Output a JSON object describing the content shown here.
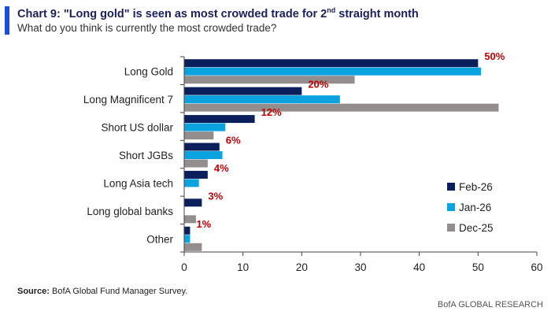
{
  "header": {
    "title_main": "Chart 9: \"Long gold\" is seen as most crowded trade for 2",
    "title_sup": "nd",
    "title_tail": " straight month",
    "subtitle": "What do you think is currently the most crowded trade?"
  },
  "footer": {
    "source_label": "Source:",
    "source_text": " BofA Global Fund Manager Survey.",
    "brand": "BofA GLOBAL RESEARCH"
  },
  "chart_data": {
    "type": "bar",
    "orientation": "horizontal",
    "categories": [
      "Long Gold",
      "Long Magnificent 7",
      "Short US dollar",
      "Short JGBs",
      "Long Asia tech",
      "Long global banks",
      "Other"
    ],
    "series": [
      {
        "name": "Feb-26",
        "color": "#0b1f5c",
        "values": [
          50,
          20,
          12,
          6,
          4,
          3,
          1
        ]
      },
      {
        "name": "Jan-26",
        "color": "#0aa3e0",
        "values": [
          50.5,
          26.5,
          7,
          6.5,
          2.5,
          0,
          1
        ]
      },
      {
        "name": "Dec-25",
        "color": "#938d8d",
        "values": [
          29,
          53.5,
          5,
          4,
          0,
          2,
          3
        ]
      }
    ],
    "data_labels": [
      "50%",
      "20%",
      "12%",
      "6%",
      "4%",
      "3%",
      "1%"
    ],
    "data_label_color": "#c00000",
    "xlim": [
      0,
      60
    ],
    "xticks": [
      "0",
      "10",
      "20",
      "30",
      "40",
      "50",
      "60"
    ],
    "grid": false,
    "legend_position": "bottom-right"
  }
}
